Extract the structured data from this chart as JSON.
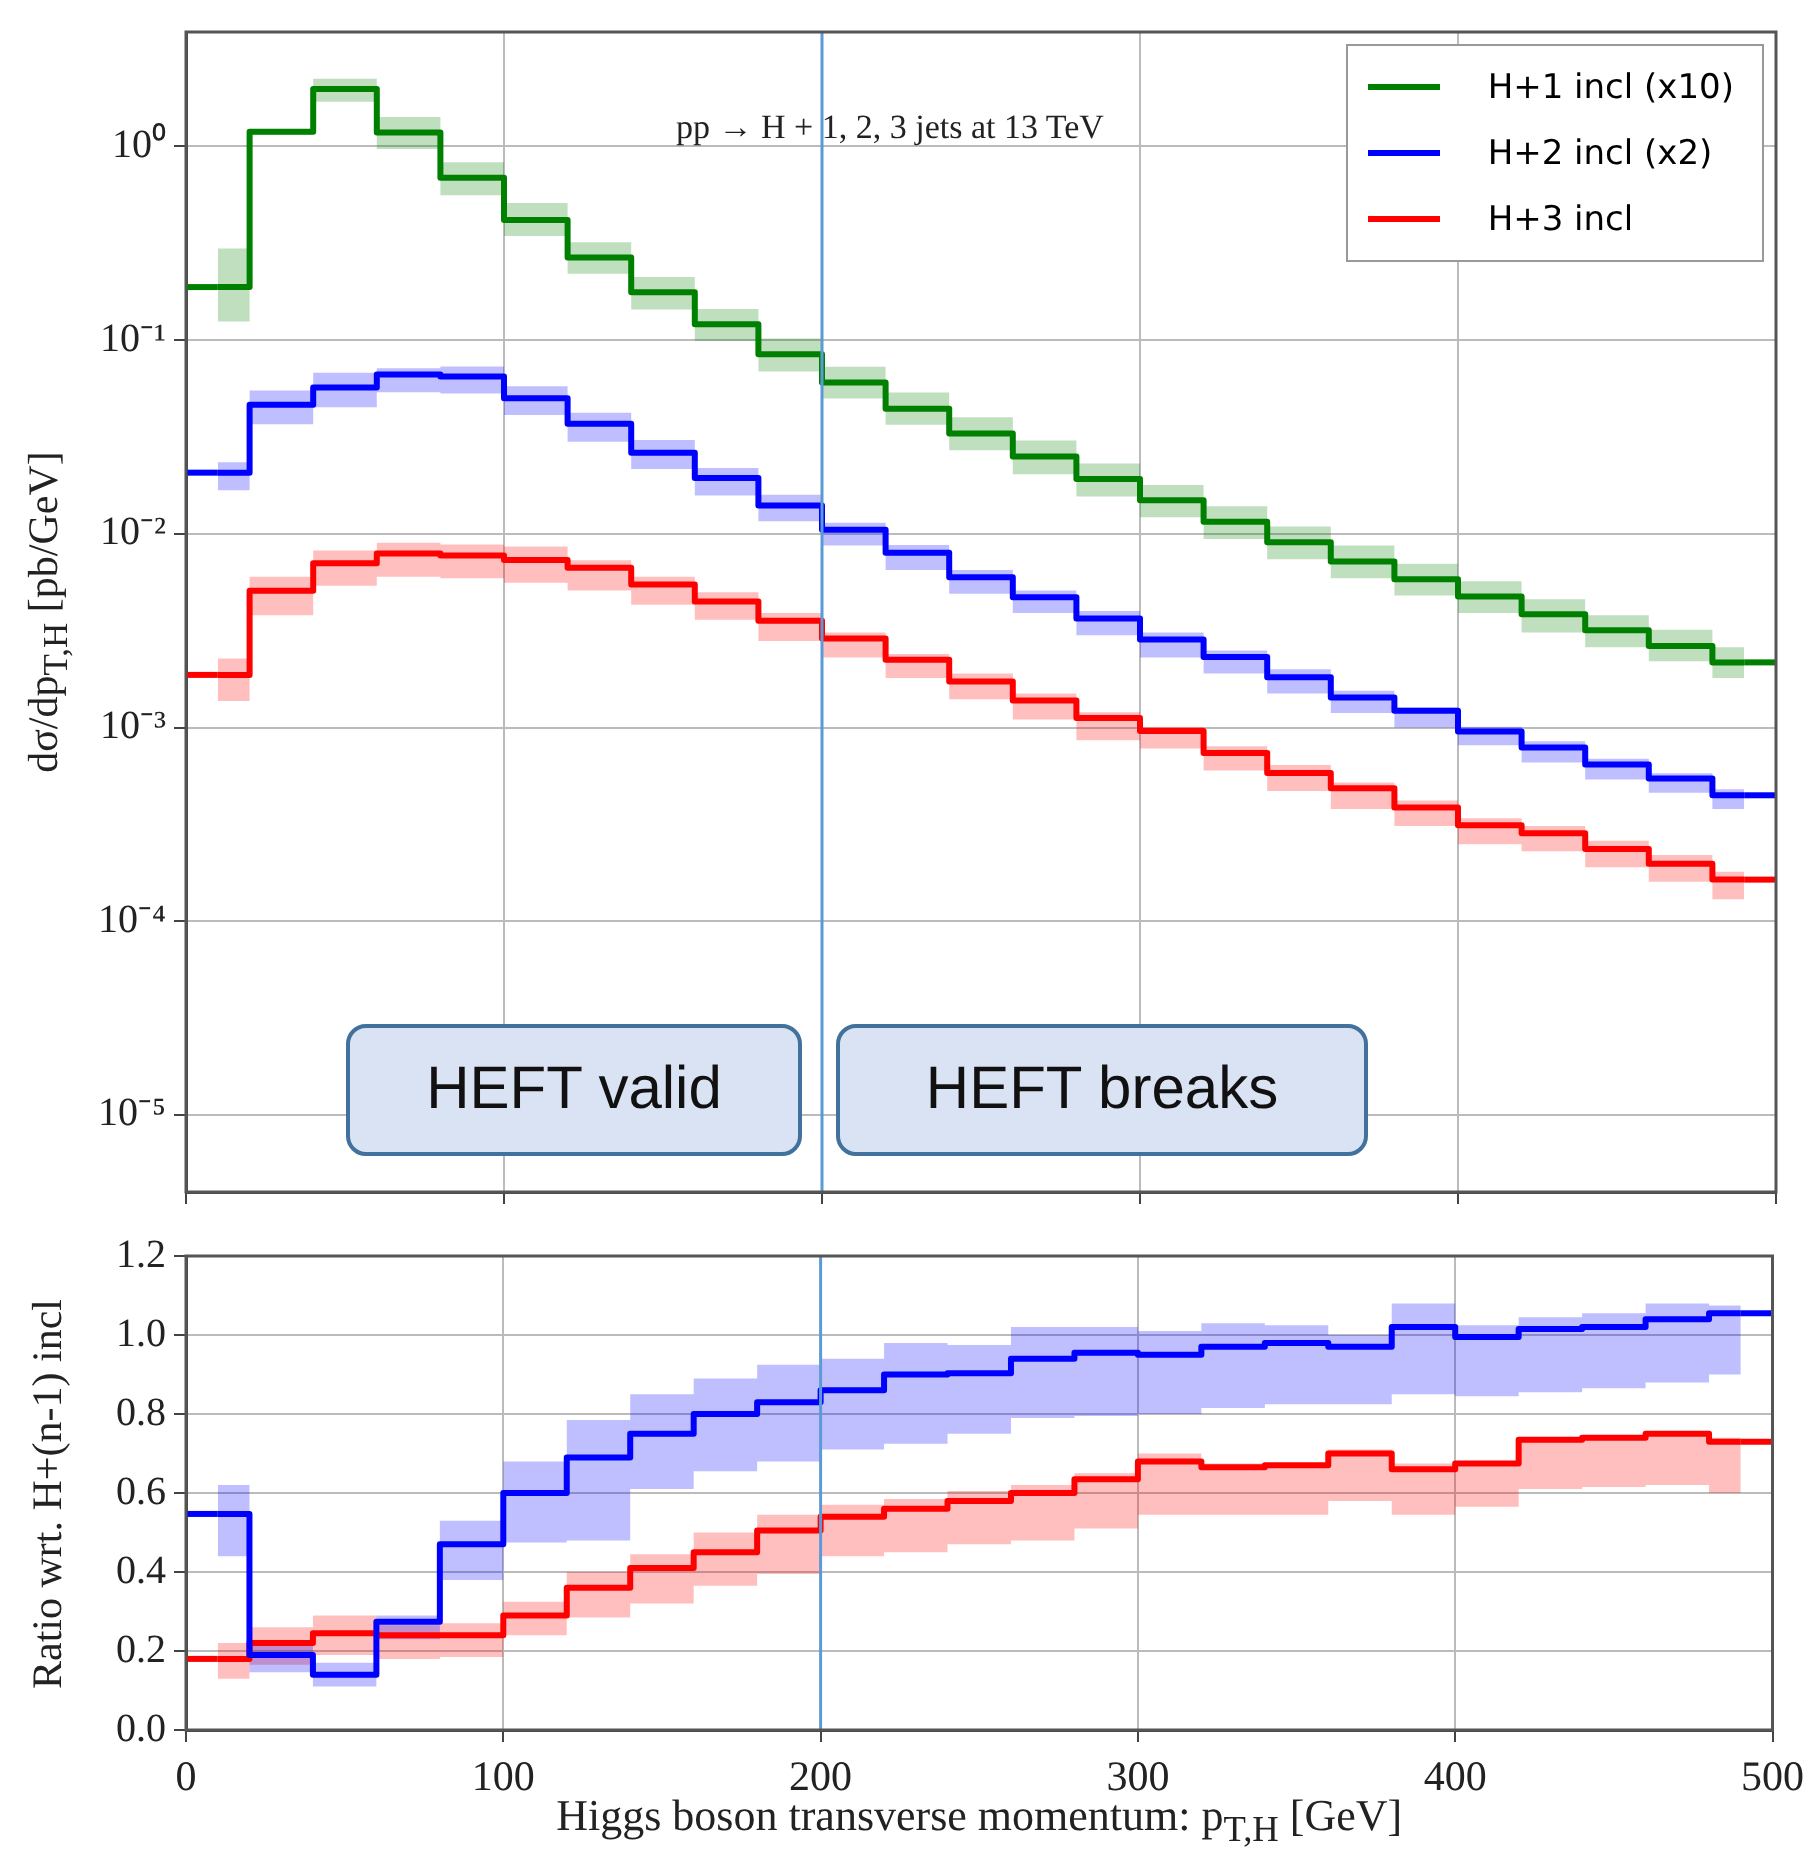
{
  "chart_data": [
    {
      "type": "step",
      "ylabel": "dσ/dp$_{T,H}$ [pb/GeV]",
      "annotations": [
        "pp → H + 1, 2, 3 jets at 13 TeV",
        "HEFT valid",
        "HEFT breaks"
      ],
      "x": [
        10,
        30,
        50,
        70,
        90,
        110,
        130,
        150,
        170,
        190,
        210,
        230,
        250,
        270,
        290,
        310,
        330,
        350,
        370,
        390,
        410,
        430,
        450,
        470,
        490
      ],
      "xlim": [
        0,
        500
      ],
      "xticks": [
        0,
        100,
        200,
        300,
        400,
        500
      ],
      "ylim": [
        4e-06,
        3.9
      ],
      "yticks": [
        {
          "value": 1e-05,
          "label": "10⁻⁵"
        },
        {
          "value": 0.0001,
          "label": "10⁻⁴"
        },
        {
          "value": 0.001,
          "label": "10⁻³"
        },
        {
          "value": 0.01,
          "label": "10⁻²"
        },
        {
          "value": 0.1,
          "label": "10⁻¹"
        },
        {
          "value": 1,
          "label": "10⁰"
        }
      ],
      "log": "y",
      "grid": true,
      "legend": "top right",
      "tick_labels": "y",
      "marker": "none",
      "line_style": "solid",
      "ref_lines": [
        {
          "axis": "x",
          "value": 200,
          "color": "#5b9bd5"
        }
      ],
      "series": [
        {
          "name": "H+1 incl (x10)",
          "color": "#008000",
          "values": [
            0.188,
            1.19,
            1.98,
            1.18,
            0.69,
            0.417,
            0.267,
            0.177,
            0.121,
            0.0846,
            0.0605,
            0.0443,
            0.033,
            0.0251,
            0.0192,
            0.0149,
            0.01156,
            0.00906,
            0.00721,
            0.00583,
            0.00475,
            0.00384,
            0.00318,
            0.00264,
            0.00217
          ],
          "lower": [
            0.125,
            1.15,
            1.7,
            0.97,
            0.56,
            0.345,
            0.22,
            0.144,
            0.099,
            0.069,
            0.05,
            0.0366,
            0.027,
            0.0203,
            0.0156,
            0.0122,
            0.0094,
            0.0074,
            0.0059,
            0.0048,
            0.0039,
            0.0031,
            0.0026,
            0.0022,
            0.0018
          ],
          "upper": [
            0.297,
            1.23,
            2.24,
            1.42,
            0.83,
            0.51,
            0.32,
            0.212,
            0.145,
            0.102,
            0.073,
            0.0537,
            0.04,
            0.0303,
            0.0231,
            0.0179,
            0.0139,
            0.0109,
            0.0087,
            0.007,
            0.0057,
            0.0046,
            0.0038,
            0.0032,
            0.0026
          ]
        },
        {
          "name": "H+2 incl (x2)",
          "color": "#0000ff",
          "values": [
            0.0207,
            0.0464,
            0.057,
            0.0664,
            0.0649,
            0.0501,
            0.037,
            0.0262,
            0.0194,
            0.014,
            0.0105,
            0.008,
            0.00597,
            0.00471,
            0.00366,
            0.00285,
            0.00231,
            0.00182,
            0.00143,
            0.00122,
            0.000955,
            0.00079,
            0.000644,
            0.000545,
            0.000447
          ],
          "lower": [
            0.0168,
            0.0368,
            0.0451,
            0.0539,
            0.0531,
            0.0411,
            0.0299,
            0.0216,
            0.0158,
            0.0116,
            0.0087,
            0.0065,
            0.0049,
            0.0039,
            0.003,
            0.0023,
            0.0019,
            0.0015,
            0.00119,
            0.001,
            0.00081,
            0.00066,
            0.00054,
            0.00046,
            0.00038
          ],
          "upper": [
            0.0234,
            0.055,
            0.0678,
            0.0717,
            0.0731,
            0.0578,
            0.0422,
            0.0305,
            0.0219,
            0.0159,
            0.0114,
            0.00876,
            0.0065,
            0.0051,
            0.004,
            0.0031,
            0.0025,
            0.002,
            0.00155,
            0.00127,
            0.00101,
            0.00085,
            0.00069,
            0.00058,
            0.00048
          ]
        },
        {
          "name": "H+3 incl",
          "color": "#ff0000",
          "values": [
            0.00187,
            0.00508,
            0.00705,
            0.00791,
            0.00773,
            0.00733,
            0.00668,
            0.00548,
            0.00447,
            0.00356,
            0.00288,
            0.00224,
            0.00173,
            0.00138,
            0.00112,
            0.00096,
            0.000738,
            0.000583,
            0.000486,
            0.000387,
            0.000313,
            0.000285,
            0.000236,
            0.000198,
            0.000164
          ],
          "lower": [
            0.00137,
            0.0038,
            0.0054,
            0.006,
            0.0059,
            0.0056,
            0.0051,
            0.0043,
            0.0036,
            0.0028,
            0.0023,
            0.0018,
            0.0014,
            0.0011,
            0.00086,
            0.00078,
            0.0006,
            0.00047,
            0.00038,
            0.00031,
            0.00025,
            0.00023,
            0.00019,
            0.00016,
            0.00013
          ],
          "upper": [
            0.00227,
            0.006,
            0.0082,
            0.009,
            0.0088,
            0.0086,
            0.0073,
            0.006,
            0.005,
            0.0039,
            0.0031,
            0.0024,
            0.0019,
            0.0015,
            0.0012,
            0.00101,
            0.0008,
            0.00064,
            0.00052,
            0.00042,
            0.00034,
            0.00031,
            0.00026,
            0.00022,
            0.00018
          ]
        }
      ]
    },
    {
      "type": "step",
      "ylabel": "Ratio wrt. H+(n-1) incl",
      "xlabel": "Higgs boson transverse momentum:  p$_{T,H}$ [GeV]",
      "x": [
        10,
        30,
        50,
        70,
        90,
        110,
        130,
        150,
        170,
        190,
        210,
        230,
        250,
        270,
        290,
        310,
        330,
        350,
        370,
        390,
        410,
        430,
        450,
        470,
        490
      ],
      "xlim": [
        0,
        500
      ],
      "xticks": [
        0,
        100,
        200,
        300,
        400,
        500
      ],
      "ylim": [
        0,
        1.2
      ],
      "yticks": [
        {
          "value": 0,
          "label": "0.0"
        },
        {
          "value": 0.2,
          "label": "0.2"
        },
        {
          "value": 0.4,
          "label": "0.4"
        },
        {
          "value": 0.6,
          "label": "0.6"
        },
        {
          "value": 0.8,
          "label": "0.8"
        },
        {
          "value": 1,
          "label": "1.0"
        },
        {
          "value": 1.2,
          "label": "1.2"
        }
      ],
      "grid": true,
      "marker": "none",
      "line_style": "solid",
      "ref_lines": [
        {
          "axis": "x",
          "value": 200,
          "color": "#5b9bd5"
        }
      ],
      "series": [
        {
          "color": "#0000ff",
          "values": [
            0.547,
            0.19,
            0.14,
            0.274,
            0.47,
            0.6,
            0.69,
            0.75,
            0.8,
            0.83,
            0.86,
            0.9,
            0.903,
            0.94,
            0.955,
            0.95,
            0.97,
            0.98,
            0.97,
            1.02,
            0.995,
            1.015,
            1.02,
            1.04,
            1.055
          ],
          "lower": [
            0.44,
            0.146,
            0.11,
            0.23,
            0.38,
            0.475,
            0.48,
            0.61,
            0.655,
            0.68,
            0.71,
            0.725,
            0.75,
            0.79,
            0.795,
            0.8,
            0.815,
            0.825,
            0.825,
            0.85,
            0.845,
            0.855,
            0.865,
            0.88,
            0.9
          ],
          "upper": [
            0.62,
            0.225,
            0.17,
            0.29,
            0.53,
            0.68,
            0.785,
            0.85,
            0.89,
            0.925,
            0.94,
            0.98,
            0.975,
            1.02,
            1.02,
            1.01,
            1.03,
            1.025,
            1,
            1.08,
            1.025,
            1.045,
            1.055,
            1.08,
            1.075
          ]
        },
        {
          "color": "#ff0000",
          "values": [
            0.18,
            0.22,
            0.245,
            0.24,
            0.24,
            0.29,
            0.36,
            0.41,
            0.45,
            0.505,
            0.54,
            0.56,
            0.58,
            0.6,
            0.635,
            0.68,
            0.665,
            0.67,
            0.7,
            0.66,
            0.675,
            0.735,
            0.74,
            0.75,
            0.73
          ],
          "lower": [
            0.13,
            0.165,
            0.19,
            0.18,
            0.185,
            0.24,
            0.285,
            0.32,
            0.365,
            0.395,
            0.44,
            0.45,
            0.47,
            0.48,
            0.51,
            0.545,
            0.545,
            0.545,
            0.58,
            0.545,
            0.565,
            0.61,
            0.615,
            0.62,
            0.6
          ],
          "upper": [
            0.22,
            0.26,
            0.29,
            0.265,
            0.27,
            0.325,
            0.4,
            0.445,
            0.5,
            0.545,
            0.57,
            0.585,
            0.605,
            0.62,
            0.65,
            0.7,
            0.675,
            0.675,
            0.71,
            0.675,
            0.68,
            0.74,
            0.745,
            0.755,
            0.74
          ]
        }
      ]
    }
  ]
}
